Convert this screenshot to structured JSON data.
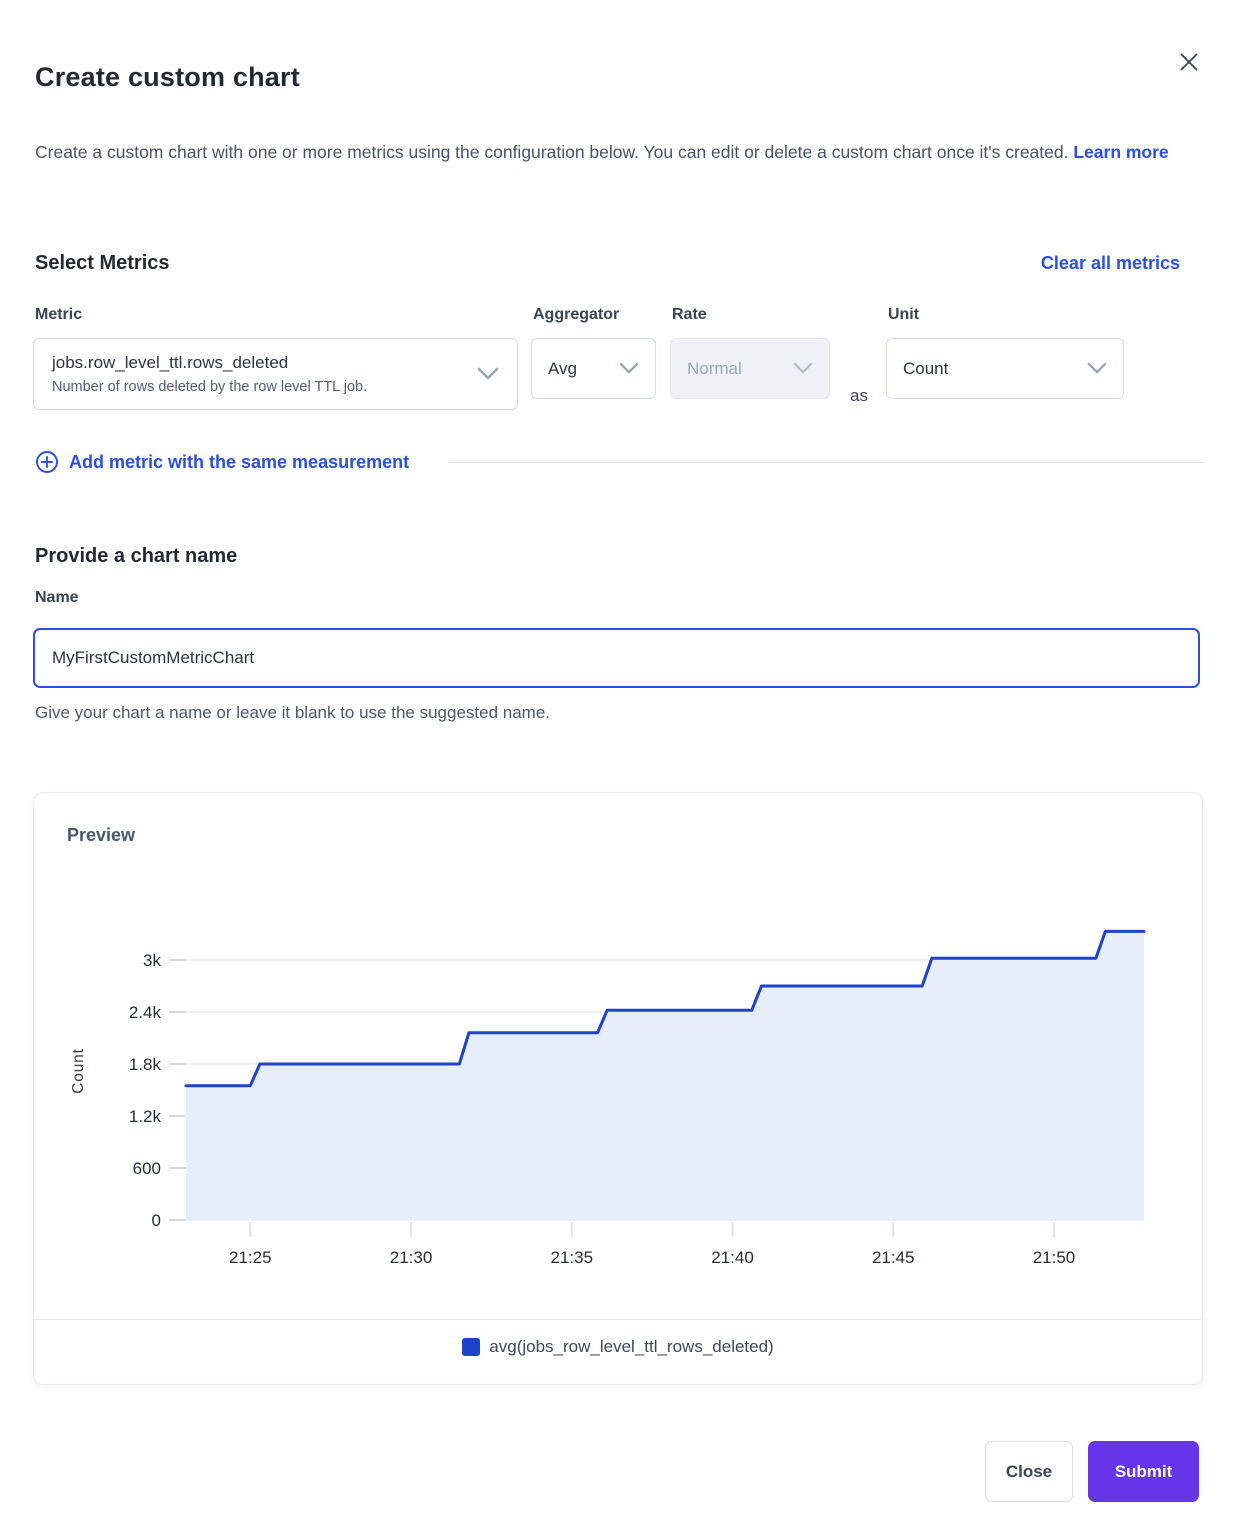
{
  "modal": {
    "title": "Create custom chart",
    "description": "Create a custom chart with one or more metrics using the configuration below. You can edit or delete a custom chart once it's created.",
    "learn_more_label": "Learn more"
  },
  "metrics_section": {
    "heading": "Select Metrics",
    "clear_all_label": "Clear all metrics",
    "metric": {
      "label": "Metric",
      "value": "jobs.row_level_ttl.rows_deleted",
      "description": "Number of rows deleted by the row level TTL job."
    },
    "aggregator": {
      "label": "Aggregator",
      "value": "Avg"
    },
    "rate": {
      "label": "Rate",
      "value": "Normal",
      "disabled": true
    },
    "as_label": "as",
    "unit": {
      "label": "Unit",
      "value": "Count"
    },
    "add_metric_label": "Add metric with the same measurement"
  },
  "name_section": {
    "heading": "Provide a chart name",
    "label": "Name",
    "value": "MyFirstCustomMetricChart",
    "helper": "Give your chart a name or leave it blank to use the suggested name."
  },
  "preview": {
    "heading": "Preview"
  },
  "chart_data": {
    "type": "area",
    "step_interpolation": true,
    "title": "Preview",
    "xlabel": "",
    "ylabel": "Count",
    "x_unit": "minutes after 21:00",
    "xlim": [
      23,
      52.8
    ],
    "ylim": [
      0,
      3450
    ],
    "grid": "horizontal",
    "legend_position": "bottom",
    "x_ticks": [
      {
        "value": 25,
        "label": "21:25"
      },
      {
        "value": 30,
        "label": "21:30"
      },
      {
        "value": 35,
        "label": "21:35"
      },
      {
        "value": 40,
        "label": "21:40"
      },
      {
        "value": 45,
        "label": "21:45"
      },
      {
        "value": 50,
        "label": "21:50"
      }
    ],
    "y_ticks": [
      {
        "value": 0,
        "label": "0"
      },
      {
        "value": 600,
        "label": "600"
      },
      {
        "value": 1200,
        "label": "1.2k"
      },
      {
        "value": 1800,
        "label": "1.8k"
      },
      {
        "value": 2400,
        "label": "2.4k"
      },
      {
        "value": 3000,
        "label": "3k"
      }
    ],
    "legend": [
      {
        "label": "avg(jobs_row_level_ttl_rows_deleted)",
        "color": "#1e42c8"
      }
    ],
    "series": [
      {
        "name": "avg(jobs_row_level_ttl_rows_deleted)",
        "color": "#1e42c8",
        "fill": "#e8edfb",
        "points": [
          [
            23.0,
            1550
          ],
          [
            25.0,
            1550
          ],
          [
            25.3,
            1800
          ],
          [
            31.5,
            1800
          ],
          [
            31.8,
            2160
          ],
          [
            35.8,
            2160
          ],
          [
            36.1,
            2420
          ],
          [
            40.6,
            2420
          ],
          [
            40.9,
            2700
          ],
          [
            45.9,
            2700
          ],
          [
            46.2,
            3020
          ],
          [
            51.3,
            3020
          ],
          [
            51.6,
            3330
          ],
          [
            52.8,
            3330
          ]
        ]
      }
    ]
  },
  "footer": {
    "close_label": "Close",
    "submit_label": "Submit"
  },
  "colors": {
    "link": "#2b4fe2",
    "line": "#1e42c8",
    "area_fill": "#e8edfb",
    "submit_button": "#6634e9",
    "disabled_field_bg": "#eef1f6"
  }
}
